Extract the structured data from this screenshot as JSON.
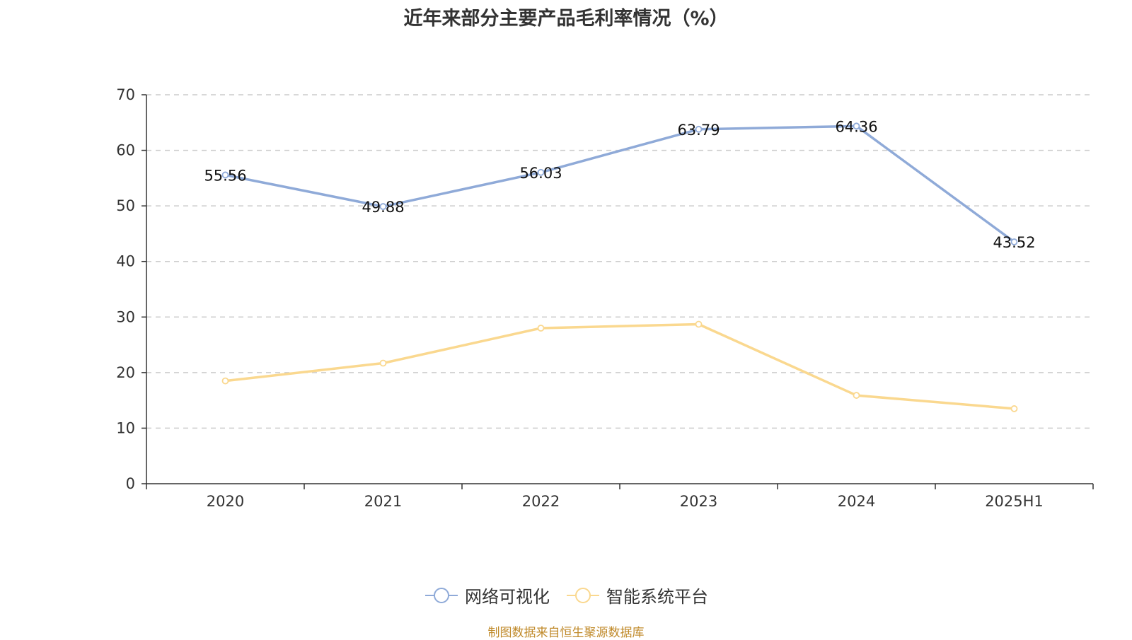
{
  "colors": {
    "series_1": "#8faad8",
    "series_2": "#fad88f",
    "axis": "#333333",
    "grid": "#cccccc",
    "source": "#c08a2a"
  },
  "chart_data": {
    "type": "line",
    "title": "近年来部分主要产品毛利率情况（%）",
    "xlabel": "",
    "ylabel": "",
    "categories": [
      "2020",
      "2021",
      "2022",
      "2023",
      "2024",
      "2025H1"
    ],
    "ylim": [
      0,
      70
    ],
    "yticks": [
      0,
      10,
      20,
      30,
      40,
      50,
      60,
      70
    ],
    "grid": true,
    "legend_position": "bottom-center",
    "series": [
      {
        "name": "网络可视化",
        "values": [
          55.56,
          49.88,
          56.03,
          63.79,
          64.36,
          43.52
        ],
        "data_labels": [
          "55.56",
          "49.88",
          "56.03",
          "63.79",
          "64.36",
          "43.52"
        ],
        "color": "#8faad8"
      },
      {
        "name": "智能系统平台",
        "values": [
          18.5,
          21.7,
          28.0,
          28.7,
          15.9,
          13.5
        ],
        "color": "#fad88f"
      }
    ]
  },
  "footer": {
    "source": "制图数据来自恒生聚源数据库"
  }
}
